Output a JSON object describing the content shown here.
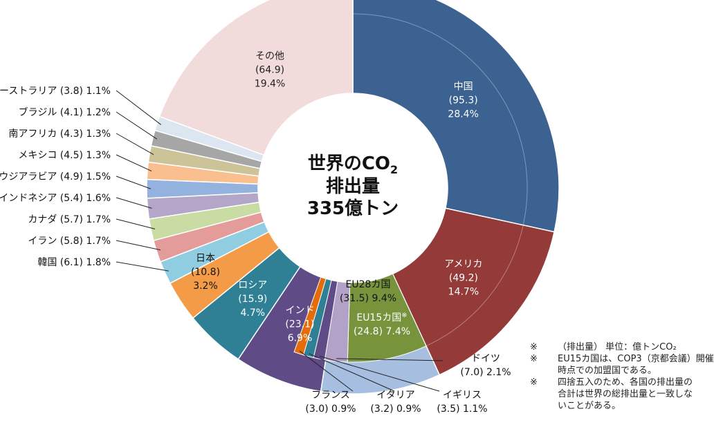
{
  "chart_data": {
    "type": "pie",
    "center_title": [
      "世界のCO",
      "2",
      "排出量",
      "335億トン"
    ],
    "unit": "億トン",
    "total": 335,
    "outer": [
      {
        "name": "中国",
        "value": 95.3,
        "value_label": "(95.3)",
        "percent": "28.4%",
        "color": "#3c6291"
      },
      {
        "name": "アメリカ",
        "value": 49.2,
        "value_label": "(49.2)",
        "percent": "14.7%",
        "color": "#943a38"
      },
      {
        "name": "EU28カ国",
        "value": 31.5,
        "value_label": "(31.5)",
        "percent": "9.4%",
        "color": "#a6bfe0"
      },
      {
        "name": "インド",
        "value": 23.1,
        "value_label": "(23.1)",
        "percent": "6.9%",
        "color": "#5f4b86"
      },
      {
        "name": "ロシア",
        "value": 15.9,
        "value_label": "(15.9)",
        "percent": "4.7%",
        "color": "#2f8095"
      },
      {
        "name": "日本",
        "value": 10.8,
        "value_label": "(10.8)",
        "percent": "3.2%",
        "color": "#f39b46"
      },
      {
        "name": "韓国",
        "value": 6.1,
        "value_label": "(6.1)",
        "percent": "1.8%",
        "color": "#90cde0"
      },
      {
        "name": "イラン",
        "value": 5.8,
        "value_label": "(5.8)",
        "percent": "1.7%",
        "color": "#e39c9a"
      },
      {
        "name": "カナダ",
        "value": 5.7,
        "value_label": "(5.7)",
        "percent": "1.7%",
        "color": "#c8dca3"
      },
      {
        "name": "インドネシア",
        "value": 5.4,
        "value_label": "(5.4)",
        "percent": "1.6%",
        "color": "#b4a6c9"
      },
      {
        "name": "サウジアラビア",
        "value": 4.9,
        "value_label": "(4.9)",
        "percent": "1.5%",
        "color": "#93b3de"
      },
      {
        "name": "メキシコ",
        "value": 4.5,
        "value_label": "(4.5)",
        "percent": "1.3%",
        "color": "#f9bf8e"
      },
      {
        "name": "南アフリカ",
        "value": 4.3,
        "value_label": "(4.3)",
        "percent": "1.3%",
        "color": "#cdc398"
      },
      {
        "name": "ブラジル",
        "value": 4.1,
        "value_label": "(4.1)",
        "percent": "1.2%",
        "color": "#a6a6a6"
      },
      {
        "name": "オーストラリア",
        "value": 3.8,
        "value_label": "(3.8)",
        "percent": "1.1%",
        "color": "#dce6f1"
      },
      {
        "name": "その他",
        "value": 64.9,
        "value_label": "(64.9)",
        "percent": "19.4%",
        "color": "#f2dcdb"
      }
    ],
    "inner": [
      {
        "name": "EU15カ国",
        "mark": "※",
        "value": 24.8,
        "value_label": "(24.8)",
        "percent": "7.4%",
        "color": "#77933c"
      },
      {
        "name": "ドイツ",
        "value": 7.0,
        "value_label": "(7.0)",
        "percent": "2.1%",
        "color": "#b3a2c7"
      },
      {
        "name": "イギリス",
        "value": 3.5,
        "value_label": "(3.5)",
        "percent": "1.1%",
        "color": "#5f4b86"
      },
      {
        "name": "イタリア",
        "value": 3.2,
        "value_label": "(3.2)",
        "percent": "0.9%",
        "color": "#2f8095"
      },
      {
        "name": "フランス",
        "value": 3.0,
        "value_label": "(3.0)",
        "percent": "0.9%",
        "color": "#e46c0a"
      }
    ],
    "left_labels": [
      {
        "name": "オーストラリア",
        "value_label": "(3.8)",
        "percent": "1.1%"
      },
      {
        "name": "ブラジル",
        "value_label": "(4.1)",
        "percent": "1.2%"
      },
      {
        "name": "南アフリカ",
        "value_label": "(4.3)",
        "percent": "1.3%"
      },
      {
        "name": "メキシコ",
        "value_label": "(4.5)",
        "percent": "1.3%"
      },
      {
        "name": "サウジアラビア",
        "value_label": "(4.9)",
        "percent": "1.5%"
      },
      {
        "name": "インドネシア",
        "value_label": "(5.4)",
        "percent": "1.6%"
      },
      {
        "name": "カナダ",
        "value_label": "(5.7)",
        "percent": "1.7%"
      },
      {
        "name": "イラン",
        "value_label": "(5.8)",
        "percent": "1.7%"
      },
      {
        "name": "韓国",
        "value_label": "(6.1)",
        "percent": "1.8%"
      }
    ]
  },
  "notes": [
    {
      "mark": "※",
      "lines": [
        "（排出量） 単位：億トンCO₂"
      ]
    },
    {
      "mark": "※",
      "lines": [
        "EU15カ国は、COP3（京都会議）開催",
        "時点での加盟国である。"
      ]
    },
    {
      "mark": "※",
      "lines": [
        "四捨五入のため、各国の排出量の",
        "合計は世界の総排出量と一致しな",
        "いことがある。"
      ]
    }
  ]
}
